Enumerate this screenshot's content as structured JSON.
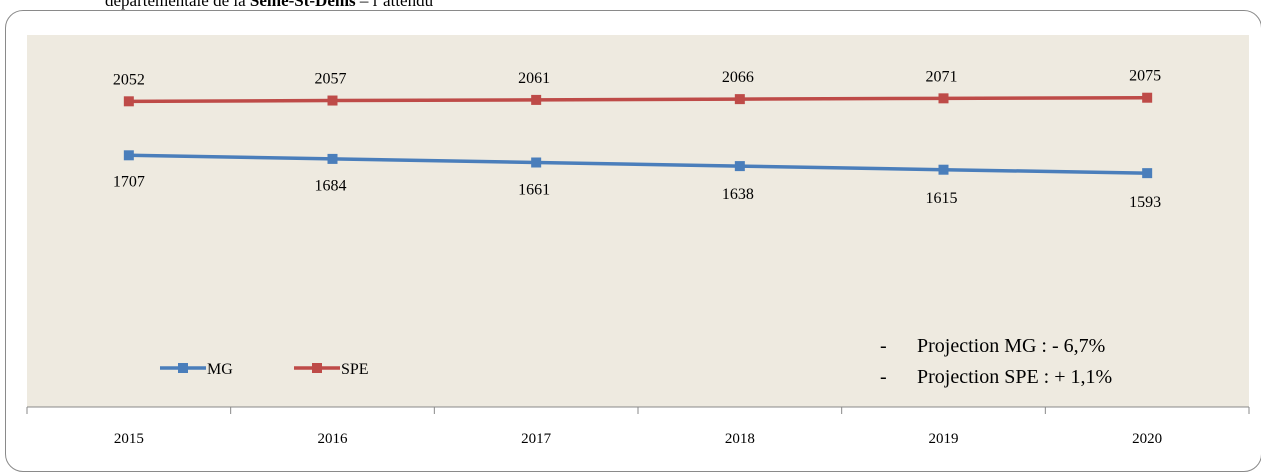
{
  "caption": {
    "prefix": "départementale de la ",
    "bold": "Seine-St-Denis",
    "suffix": " – l’attendu"
  },
  "colors": {
    "plot_bg": "#EEEAE0",
    "mg": "#4A7EBB",
    "spe": "#BE4B48",
    "axis": "#888888"
  },
  "chart_data": {
    "type": "line",
    "categories": [
      "2015",
      "2016",
      "2017",
      "2018",
      "2019",
      "2020"
    ],
    "series": [
      {
        "name": "MG",
        "values": [
          1707,
          1684,
          1661,
          1638,
          1615,
          1593
        ]
      },
      {
        "name": "SPE",
        "values": [
          2052,
          2057,
          2061,
          2066,
          2071,
          2075
        ]
      }
    ],
    "title": "",
    "xlabel": "",
    "ylabel": "",
    "grid": false,
    "legend_position": "bottom-left",
    "annotations": [
      {
        "bullet": "-",
        "text": "Projection MG : - 6,7%"
      },
      {
        "bullet": "-",
        "text": "Projection SPE : + 1,1%"
      }
    ]
  }
}
